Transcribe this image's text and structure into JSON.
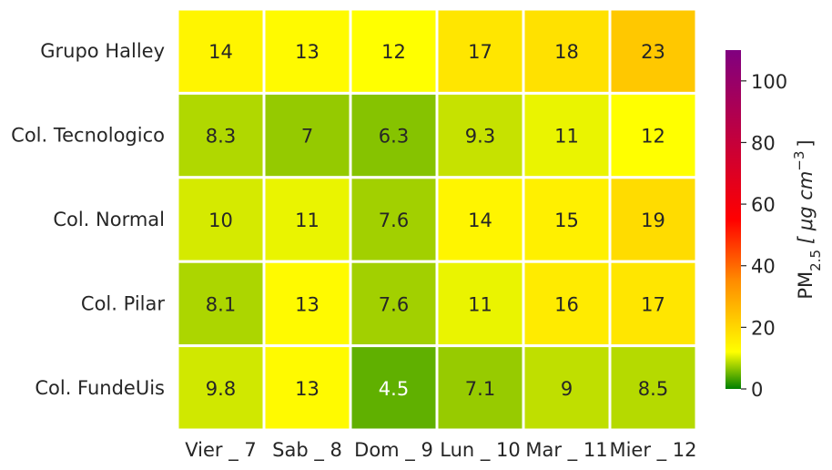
{
  "chart_data": {
    "type": "heatmap",
    "rows": [
      "Grupo Halley",
      "Col. Tecnologico",
      "Col. Normal",
      "Col. Pilar",
      "Col. FundeUis"
    ],
    "columns": [
      "Vier _ 7",
      "Sab _ 8",
      "Dom _ 9",
      "Lun _ 10",
      "Mar _ 11",
      "Mier _ 12"
    ],
    "values": [
      [
        14,
        13,
        12,
        17,
        18,
        23
      ],
      [
        8.3,
        7,
        6.3,
        9.3,
        11,
        12
      ],
      [
        10,
        11,
        7.6,
        14,
        15,
        19
      ],
      [
        8.1,
        13,
        7.6,
        11,
        16,
        17
      ],
      [
        9.8,
        13,
        4.5,
        7.1,
        9,
        8.5
      ]
    ],
    "value_labels": [
      [
        "14",
        "13",
        "12",
        "17",
        "18",
        "23"
      ],
      [
        "8.3",
        "7",
        "6.3",
        "9.3",
        "11",
        "12"
      ],
      [
        "10",
        "11",
        "7.6",
        "14",
        "15",
        "19"
      ],
      [
        "8.1",
        "13",
        "7.6",
        "11",
        "16",
        "17"
      ],
      [
        "9.8",
        "13",
        "4.5",
        "7.1",
        "9",
        "8.5"
      ]
    ],
    "colorbar": {
      "label_main": "PM",
      "label_sub": "2.5",
      "label_unit": "[ μg cm",
      "label_sup": "−3",
      "label_end": "]",
      "range": [
        0,
        110
      ],
      "ticks": [
        0,
        20,
        40,
        60,
        80,
        100
      ],
      "tick_labels": [
        "0",
        "20",
        "40",
        "60",
        "80",
        "100"
      ],
      "colormap": [
        {
          "value": 0,
          "color": "#008000"
        },
        {
          "value": 12,
          "color": "#ffff00"
        },
        {
          "value": 35,
          "color": "#ff8c00"
        },
        {
          "value": 55,
          "color": "#ff0000"
        },
        {
          "value": 110,
          "color": "#800080"
        }
      ]
    }
  }
}
